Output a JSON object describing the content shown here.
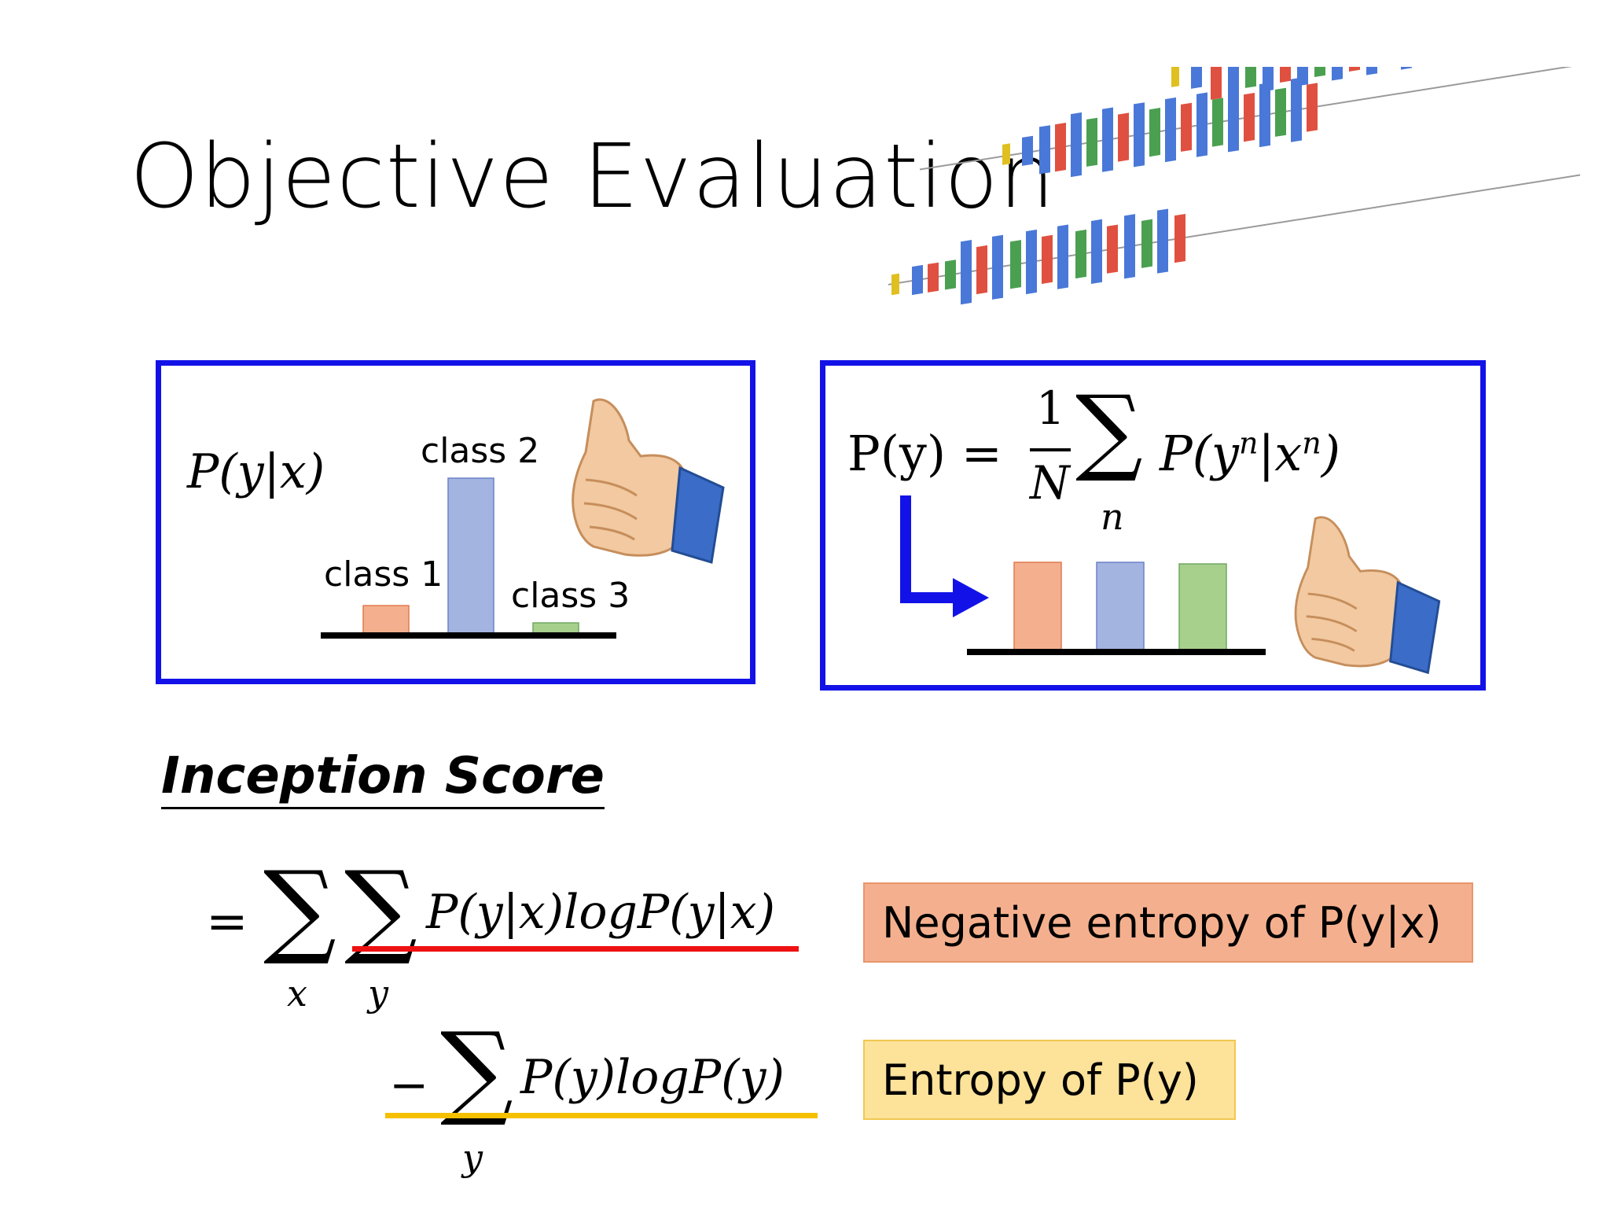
{
  "slide": {
    "title": "Objective Evaluation"
  },
  "left_panel": {
    "formula": "P(y|x)",
    "classes": [
      "class 1",
      "class 2",
      "class 3"
    ]
  },
  "right_panel": {
    "lhs": "P(y) =",
    "frac_num": "1",
    "frac_den": "N",
    "sum_index": "n",
    "rhs": "P(y",
    "rhs_sup1": "n",
    "rhs_mid": "|x",
    "rhs_sup2": "n",
    "rhs_end": ")"
  },
  "inception": {
    "heading": "Inception Score",
    "line1": {
      "eq": "=",
      "sum_x": "x",
      "sum_y": "y",
      "expr": "P(y|x)logP(y|x)"
    },
    "line2": {
      "minus": "−",
      "sum_y": "y",
      "expr": "P(y)logP(y)"
    },
    "tag1": "Negative entropy of P(y|x)",
    "tag2": "Entropy of P(y)"
  },
  "colors": {
    "panel_border": "#1212e8",
    "bar_orange": "#f4b08e",
    "bar_blue": "#a4b4e0",
    "bar_green": "#a8d08d",
    "underline_red": "#ee1111",
    "underline_yellow": "#f5c000",
    "tag1_bg": "#f4b08e",
    "tag2_bg": "#fde29a"
  },
  "icons": [
    "thumbs-up-icon",
    "network-diagram-icon",
    "arrow-icon"
  ]
}
